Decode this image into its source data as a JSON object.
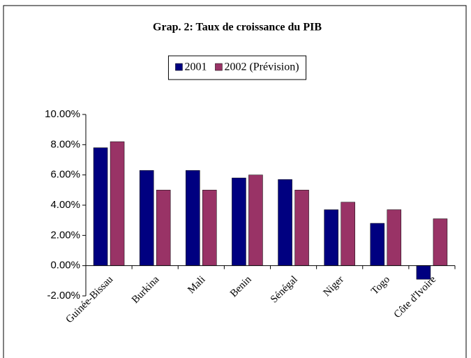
{
  "chart_data": {
    "type": "bar",
    "title": "Grap. 2: Taux de croissance du PIB",
    "categories": [
      "Guinée-Bissau",
      "Burkina",
      "Mali",
      "Benin",
      "Sénégal",
      "Niger",
      "Togo",
      "Côte d'Ivoire"
    ],
    "series": [
      {
        "name": "2001",
        "color": "#000080",
        "values": [
          7.8,
          6.3,
          6.3,
          5.8,
          5.7,
          3.7,
          2.8,
          -0.9
        ]
      },
      {
        "name": "2002 (Prévision)",
        "color": "#993366",
        "values": [
          8.2,
          5.0,
          5.0,
          6.0,
          5.0,
          4.2,
          3.7,
          3.1
        ]
      }
    ],
    "ylim": [
      -2,
      10
    ],
    "yticks": [
      {
        "value": -2,
        "label": "-2.00%"
      },
      {
        "value": 0,
        "label": "0.00%"
      },
      {
        "value": 2,
        "label": "2.00%"
      },
      {
        "value": 4,
        "label": "4.00%"
      },
      {
        "value": 6,
        "label": "6.00%"
      },
      {
        "value": 8,
        "label": "8.00%"
      },
      {
        "value": 10,
        "label": "10.00%"
      }
    ],
    "legend": "top"
  }
}
